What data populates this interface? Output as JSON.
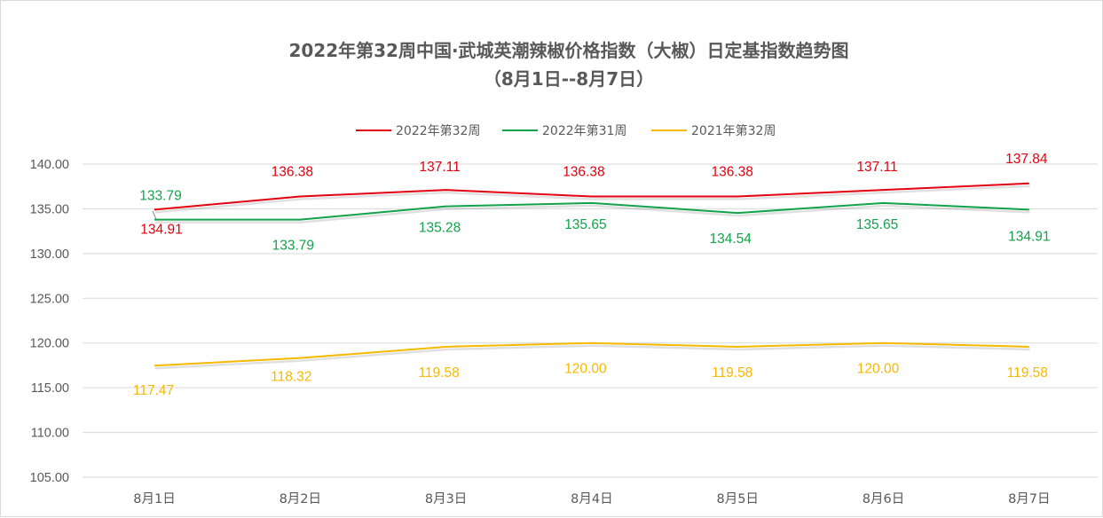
{
  "chart_data": {
    "type": "line",
    "title": "2022年第32周中国·武城英潮辣椒价格指数（大椒）日定基指数趋势图",
    "subtitle": "（8月1日--8月7日）",
    "categories": [
      "8月1日",
      "8月2日",
      "8月3日",
      "8月4日",
      "8月5日",
      "8月6日",
      "8月7日"
    ],
    "ylim": [
      105,
      140
    ],
    "yticks": [
      "105.00",
      "110.00",
      "115.00",
      "120.00",
      "125.00",
      "130.00",
      "135.00",
      "140.00"
    ],
    "grid": "horizontal",
    "legend_position": "top",
    "series": [
      {
        "name": "2022年第32周",
        "color": "#e3000f",
        "values": [
          134.91,
          136.38,
          137.11,
          136.38,
          136.38,
          137.11,
          137.84
        ],
        "labels": [
          "134.91",
          "136.38",
          "137.11",
          "136.38",
          "136.38",
          "137.11",
          "137.84"
        ]
      },
      {
        "name": "2022年第31周",
        "color": "#12a34a",
        "values": [
          133.79,
          133.79,
          135.28,
          135.65,
          134.54,
          135.65,
          134.91
        ],
        "labels": [
          "133.79",
          "133.79",
          "135.28",
          "135.65",
          "134.54",
          "135.65",
          "134.91"
        ]
      },
      {
        "name": "2021年第32周",
        "color": "#f6b800",
        "values": [
          117.47,
          118.32,
          119.58,
          120.0,
          119.58,
          120.0,
          119.58
        ],
        "labels": [
          "117.47",
          "118.32",
          "119.58",
          "120.00",
          "119.58",
          "120.00",
          "119.58"
        ]
      }
    ]
  }
}
